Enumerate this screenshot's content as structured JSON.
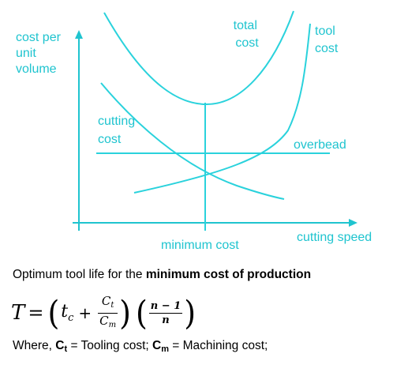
{
  "colors": {
    "curve": "#2ad2dc",
    "axis": "#1fc4cf",
    "label": "#1fc4cf",
    "text": "#000000"
  },
  "diagram": {
    "y_axis_label": [
      "cost per",
      "unit",
      "volume"
    ],
    "x_axis_label": "cutting speed",
    "curves": {
      "total_cost": [
        "total",
        "cost"
      ],
      "tool_cost": [
        "tool",
        "cost"
      ],
      "cutting_cost": [
        "cutting",
        "cost"
      ],
      "overhead": "overbead"
    },
    "minimum_marker": "minimum cost"
  },
  "text": {
    "optimum_prefix": "Optimum tool life for the ",
    "optimum_bold": "minimum cost of production",
    "formula": {
      "lhs": "T",
      "equals": "=",
      "tc": "t",
      "tc_sub": "c",
      "plus": "+",
      "frac1_num": "C",
      "frac1_num_sub": "t",
      "frac1_den": "C",
      "frac1_den_sub": "m",
      "frac2_num": "n − 1",
      "frac2_den": "n"
    },
    "where_prefix": "Where, ",
    "ct_symbol": "C",
    "ct_sub": "t",
    "ct_desc": " = Tooling cost; ",
    "cm_symbol": "C",
    "cm_sub": "m",
    "cm_desc": " = Machining cost;"
  }
}
